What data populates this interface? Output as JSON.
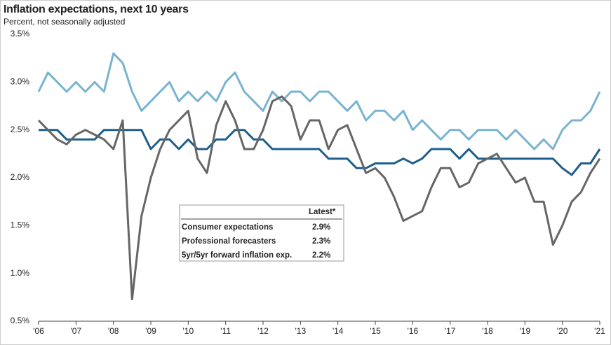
{
  "chart_data": {
    "type": "line",
    "title": "Inflation expectations, next 10 years",
    "subtitle": "Percent, not seasonally adjusted",
    "legend_header": "Latest*",
    "x": [
      2006,
      2006.25,
      2006.5,
      2006.75,
      2007,
      2007.25,
      2007.5,
      2007.75,
      2008,
      2008.25,
      2008.5,
      2008.75,
      2009,
      2009.25,
      2009.5,
      2009.75,
      2010,
      2010.25,
      2010.5,
      2010.75,
      2011,
      2011.25,
      2011.5,
      2011.75,
      2012,
      2012.25,
      2012.5,
      2012.75,
      2013,
      2013.25,
      2013.5,
      2013.75,
      2014,
      2014.25,
      2014.5,
      2014.75,
      2015,
      2015.25,
      2015.5,
      2015.75,
      2016,
      2016.25,
      2016.5,
      2016.75,
      2017,
      2017.25,
      2017.5,
      2017.75,
      2018,
      2018.25,
      2018.5,
      2018.75,
      2019,
      2019.25,
      2019.5,
      2019.75,
      2020,
      2020.25,
      2020.5,
      2020.75,
      2021
    ],
    "series": [
      {
        "name": "Consumer expectations",
        "color": "#7ab3d1",
        "latest": "2.9%",
        "values": [
          2.9,
          3.1,
          3.0,
          2.9,
          3.0,
          2.9,
          3.0,
          2.9,
          3.3,
          3.2,
          2.9,
          2.7,
          2.8,
          2.9,
          3.0,
          2.8,
          2.9,
          2.8,
          2.9,
          2.8,
          3.0,
          3.1,
          2.9,
          2.8,
          2.7,
          2.9,
          2.8,
          2.9,
          2.9,
          2.8,
          2.9,
          2.9,
          2.8,
          2.7,
          2.8,
          2.6,
          2.7,
          2.7,
          2.6,
          2.7,
          2.5,
          2.6,
          2.5,
          2.4,
          2.5,
          2.5,
          2.4,
          2.5,
          2.5,
          2.5,
          2.4,
          2.5,
          2.4,
          2.3,
          2.4,
          2.3,
          2.5,
          2.6,
          2.6,
          2.7,
          2.9
        ]
      },
      {
        "name": "Professional forecasters",
        "color": "#1f5f8b",
        "latest": "2.3%",
        "values": [
          2.5,
          2.5,
          2.5,
          2.4,
          2.4,
          2.4,
          2.4,
          2.5,
          2.5,
          2.5,
          2.5,
          2.5,
          2.3,
          2.4,
          2.4,
          2.3,
          2.4,
          2.3,
          2.3,
          2.4,
          2.4,
          2.5,
          2.5,
          2.4,
          2.4,
          2.3,
          2.3,
          2.3,
          2.3,
          2.3,
          2.3,
          2.2,
          2.2,
          2.2,
          2.1,
          2.1,
          2.15,
          2.15,
          2.15,
          2.2,
          2.15,
          2.2,
          2.3,
          2.3,
          2.3,
          2.2,
          2.3,
          2.2,
          2.2,
          2.2,
          2.2,
          2.2,
          2.2,
          2.2,
          2.2,
          2.2,
          2.1,
          2.03,
          2.15,
          2.15,
          2.3
        ]
      },
      {
        "name": "5yr/5yr forward inflation exp.",
        "color": "#666666",
        "latest": "2.2%",
        "values": [
          2.6,
          2.5,
          2.4,
          2.35,
          2.45,
          2.5,
          2.45,
          2.4,
          2.3,
          2.6,
          0.73,
          1.6,
          2.0,
          2.3,
          2.5,
          2.6,
          2.7,
          2.2,
          2.05,
          2.55,
          2.8,
          2.6,
          2.3,
          2.3,
          2.5,
          2.8,
          2.85,
          2.75,
          2.4,
          2.6,
          2.6,
          2.3,
          2.5,
          2.55,
          2.3,
          2.05,
          2.1,
          2.0,
          1.8,
          1.55,
          1.6,
          1.65,
          1.9,
          2.1,
          2.1,
          1.9,
          1.95,
          2.15,
          2.2,
          2.25,
          2.1,
          1.95,
          2.0,
          1.75,
          1.75,
          1.3,
          1.5,
          1.75,
          1.85,
          2.05,
          2.2
        ]
      }
    ],
    "xlim": [
      2006,
      2021
    ],
    "xticks": [
      {
        "value": 2006,
        "label": "'06"
      },
      {
        "value": 2007,
        "label": "'07"
      },
      {
        "value": 2008,
        "label": "'08"
      },
      {
        "value": 2009,
        "label": "'09"
      },
      {
        "value": 2010,
        "label": "'10"
      },
      {
        "value": 2011,
        "label": "'11"
      },
      {
        "value": 2012,
        "label": "'12"
      },
      {
        "value": 2013,
        "label": "'13"
      },
      {
        "value": 2014,
        "label": "'14"
      },
      {
        "value": 2015,
        "label": "'15"
      },
      {
        "value": 2016,
        "label": "'16"
      },
      {
        "value": 2017,
        "label": "'17"
      },
      {
        "value": 2018,
        "label": "'18"
      },
      {
        "value": 2019,
        "label": "'19"
      },
      {
        "value": 2020,
        "label": "'20"
      },
      {
        "value": 2021,
        "label": "'21"
      }
    ],
    "ylim": [
      0.5,
      3.5
    ],
    "yticks": [
      {
        "value": 0.5,
        "label": "0.5%"
      },
      {
        "value": 1.0,
        "label": "1.0%"
      },
      {
        "value": 1.5,
        "label": "1.5%"
      },
      {
        "value": 2.0,
        "label": "2.0%"
      },
      {
        "value": 2.5,
        "label": "2.5%"
      },
      {
        "value": 3.0,
        "label": "3.0%"
      },
      {
        "value": 3.5,
        "label": "3.5%"
      }
    ],
    "grid": false
  }
}
